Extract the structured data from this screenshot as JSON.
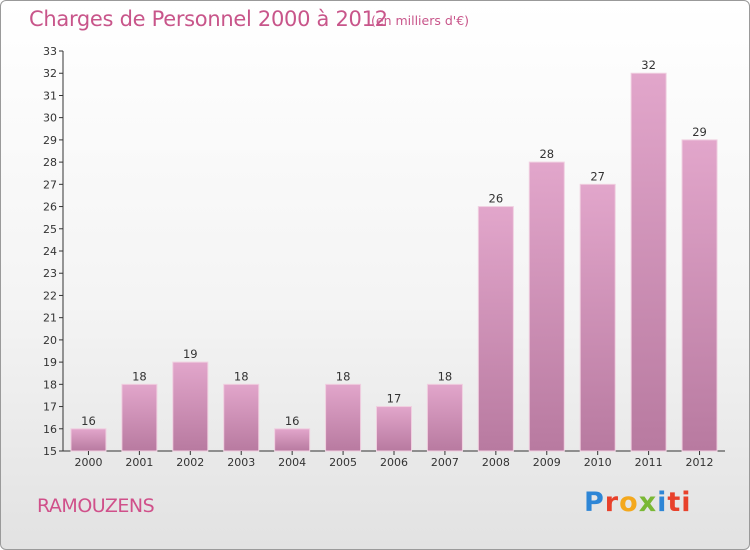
{
  "header": {
    "title": "Charges de Personnel 2000 à 2012",
    "subtitle": "(en milliers d'€)"
  },
  "commune": "RAMOUZENS",
  "logo": {
    "letters": [
      "P",
      "r",
      "o",
      "x",
      "i",
      "ti"
    ]
  },
  "colors": {
    "bar_top": "#e2a6cb",
    "bar_bottom": "#b87aa0",
    "bar_edge": "#f0cfe0",
    "title": "#c8558a"
  },
  "chart_data": {
    "type": "bar",
    "categories": [
      "2000",
      "2001",
      "2002",
      "2003",
      "2004",
      "2005",
      "2006",
      "2007",
      "2008",
      "2009",
      "2010",
      "2011",
      "2012"
    ],
    "values": [
      16,
      18,
      19,
      18,
      16,
      18,
      17,
      18,
      26,
      28,
      27,
      32,
      29
    ],
    "ylim": [
      15,
      33
    ],
    "yticks": [
      15,
      16,
      17,
      18,
      19,
      20,
      21,
      22,
      23,
      24,
      25,
      26,
      27,
      28,
      29,
      30,
      31,
      32,
      33
    ],
    "grid": false,
    "legend": "none"
  }
}
